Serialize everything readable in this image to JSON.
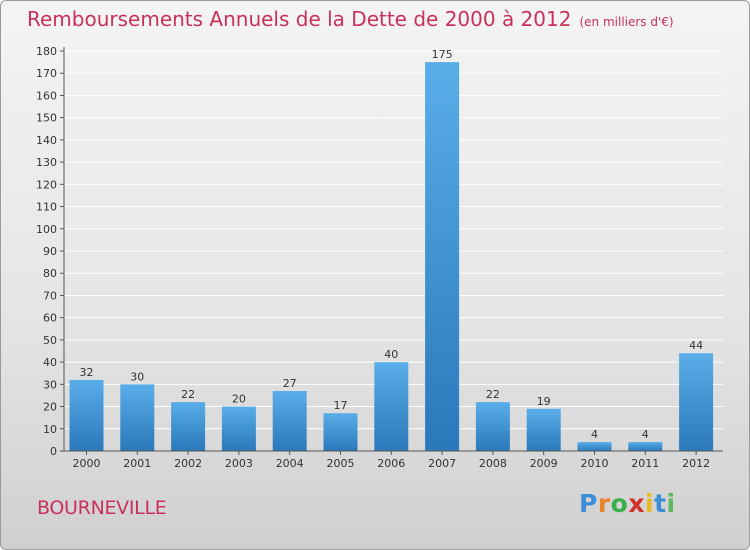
{
  "header": {
    "title": "Remboursements Annuels de la Dette de 2000 à 2012",
    "unit": "(en milliers d'€)"
  },
  "footer": {
    "commune": "BOURNEVILLE",
    "logo_letters": [
      "P",
      "r",
      "o",
      "x",
      "i",
      "t",
      "i"
    ],
    "logo_colors": [
      "#3a8ed8",
      "#e8842c",
      "#3aae4a",
      "#d2302c",
      "#e8b820",
      "#3a8ed8",
      "#5cb85c"
    ]
  },
  "colors": {
    "bar_light": "#5aaee8",
    "bar_dark": "#2a78ba",
    "grid": "#ffffff",
    "axis_text": "#333333",
    "accent": "#c8325a"
  },
  "chart_data": {
    "type": "bar",
    "categories": [
      "2000",
      "2001",
      "2002",
      "2003",
      "2004",
      "2005",
      "2006",
      "2007",
      "2008",
      "2009",
      "2010",
      "2011",
      "2012"
    ],
    "values": [
      32,
      30,
      22,
      20,
      27,
      17,
      40,
      175,
      22,
      19,
      4,
      4,
      44
    ],
    "title": "Remboursements Annuels de la Dette de 2000 à 2012",
    "ylim": [
      0,
      180
    ],
    "ytick_step": 10,
    "grid": true,
    "data_labels": true
  }
}
